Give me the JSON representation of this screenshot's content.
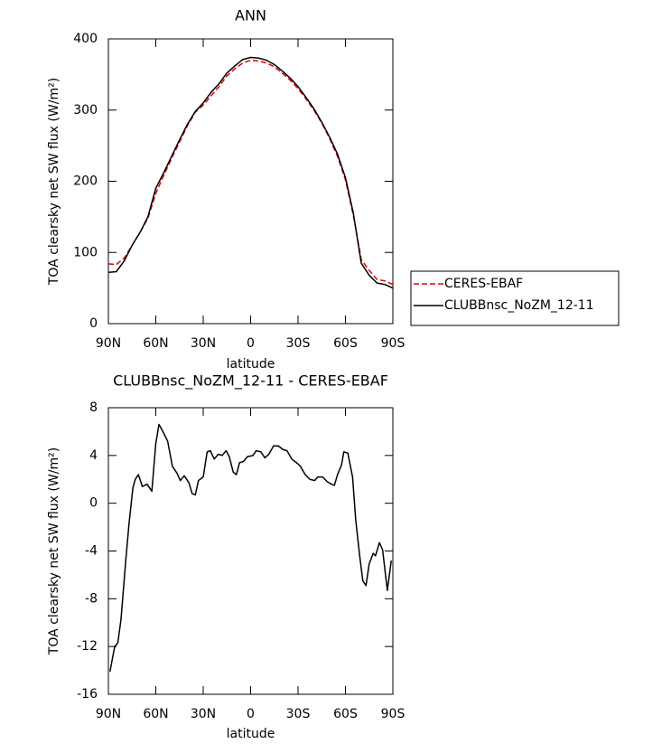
{
  "chart_data": [
    {
      "type": "line",
      "title": "ANN",
      "xlabel": "latitude",
      "ylabel": "TOA clearsky net SW flux (W/m²)",
      "x": [
        90,
        85,
        80,
        75,
        70,
        65,
        60,
        55,
        50,
        45,
        40,
        35,
        30,
        25,
        20,
        15,
        10,
        5,
        0,
        -5,
        -10,
        -15,
        -20,
        -25,
        -30,
        -35,
        -40,
        -45,
        -50,
        -55,
        -60,
        -65,
        -70,
        -75,
        -80,
        -85,
        -90
      ],
      "series": [
        {
          "name": "CERES-EBAF",
          "color": "#e00000",
          "dash": true,
          "values": [
            84,
            83,
            92,
            110,
            128,
            148,
            183,
            208,
            232,
            255,
            278,
            297,
            307,
            320,
            333,
            348,
            358,
            366,
            370,
            369,
            366,
            361,
            352,
            342,
            330,
            316,
            300,
            282,
            260,
            235,
            202,
            152,
            90,
            75,
            62,
            60,
            55
          ]
        },
        {
          "name": "CLUBBnsc_NoZM_12-11",
          "color": "#000000",
          "dash": false,
          "values": [
            72,
            73,
            88,
            110,
            128,
            150,
            190,
            212,
            235,
            258,
            280,
            298,
            310,
            325,
            337,
            352,
            362,
            371,
            374,
            373,
            370,
            364,
            355,
            345,
            333,
            318,
            302,
            283,
            262,
            238,
            205,
            155,
            85,
            68,
            57,
            55,
            50
          ]
        }
      ],
      "xlim": [
        90,
        -90
      ],
      "xticks": [
        {
          "value": 90,
          "label": "90N"
        },
        {
          "value": 60,
          "label": "60N"
        },
        {
          "value": 30,
          "label": "30N"
        },
        0,
        {
          "value": -30,
          "label": "30S"
        },
        {
          "value": -60,
          "label": "60S"
        },
        {
          "value": -90,
          "label": "90S"
        }
      ],
      "ylim": [
        0,
        400
      ],
      "yticks": [
        0,
        100,
        200,
        300,
        400
      ],
      "legend": "right"
    },
    {
      "type": "line",
      "title": "CLUBBnsc_NoZM_12-11 - CERES-EBAF",
      "xlabel": "latitude",
      "ylabel": "TOA clearsky net SW flux (W/m²)",
      "x": [
        89,
        86,
        84,
        82,
        79,
        77,
        74.5,
        73,
        71,
        68.5,
        65.5,
        62.5,
        60,
        58,
        55.5,
        52.5,
        49.5,
        46.5,
        44.5,
        42,
        39,
        37,
        35,
        33,
        30,
        27.5,
        25.5,
        23,
        20.5,
        18,
        15.5,
        13.5,
        11,
        9,
        7,
        4.5,
        2,
        -1.5,
        -3.5,
        -6.5,
        -9,
        -11.5,
        -14.5,
        -17.5,
        -20.5,
        -23,
        -26,
        -29,
        -31.5,
        -34.5,
        -37.5,
        -40.5,
        -42.5,
        -45.5,
        -48.5,
        -51,
        -53,
        -55,
        -57.5,
        -59,
        -61.5,
        -64.5,
        -66.5,
        -69,
        -71,
        -73,
        -75,
        -77.5,
        -79,
        -81.5,
        -83.5,
        -86.5,
        -89
      ],
      "series": [
        {
          "color": "#000000",
          "dash": false,
          "values": [
            -14.1,
            -12,
            -11.7,
            -9.7,
            -4.8,
            -1.8,
            1.3,
            2.0,
            2.4,
            1.4,
            1.6,
            1.0,
            5.0,
            6.6,
            6.0,
            5.2,
            3.1,
            2.5,
            1.9,
            2.3,
            1.7,
            0.8,
            0.7,
            1.9,
            2.2,
            4.3,
            4.4,
            3.7,
            4.1,
            4.0,
            4.4,
            3.9,
            2.6,
            2.4,
            3.4,
            3.5,
            3.9,
            4.0,
            4.4,
            4.3,
            3.8,
            4.1,
            4.8,
            4.8,
            4.5,
            4.4,
            3.7,
            3.4,
            3.1,
            2.4,
            2.0,
            1.9,
            2.2,
            2.2,
            1.8,
            1.6,
            1.5,
            2.4,
            3.2,
            4.3,
            4.2,
            2.2,
            -1.4,
            -4.4,
            -6.5,
            -6.9,
            -5.1,
            -4.2,
            -4.4,
            -3.3,
            -3.9,
            -7.3,
            -4.8
          ]
        }
      ],
      "xlim": [
        90,
        -90
      ],
      "xticks": [
        {
          "value": 90,
          "label": "90N"
        },
        {
          "value": 60,
          "label": "60N"
        },
        {
          "value": 30,
          "label": "30N"
        },
        0,
        {
          "value": -30,
          "label": "30S"
        },
        {
          "value": -60,
          "label": "60S"
        },
        {
          "value": -90,
          "label": "90S"
        }
      ],
      "ylim": [
        -16,
        8
      ],
      "yticks": [
        -16,
        -12,
        -8,
        -4,
        0,
        4,
        8
      ]
    }
  ]
}
